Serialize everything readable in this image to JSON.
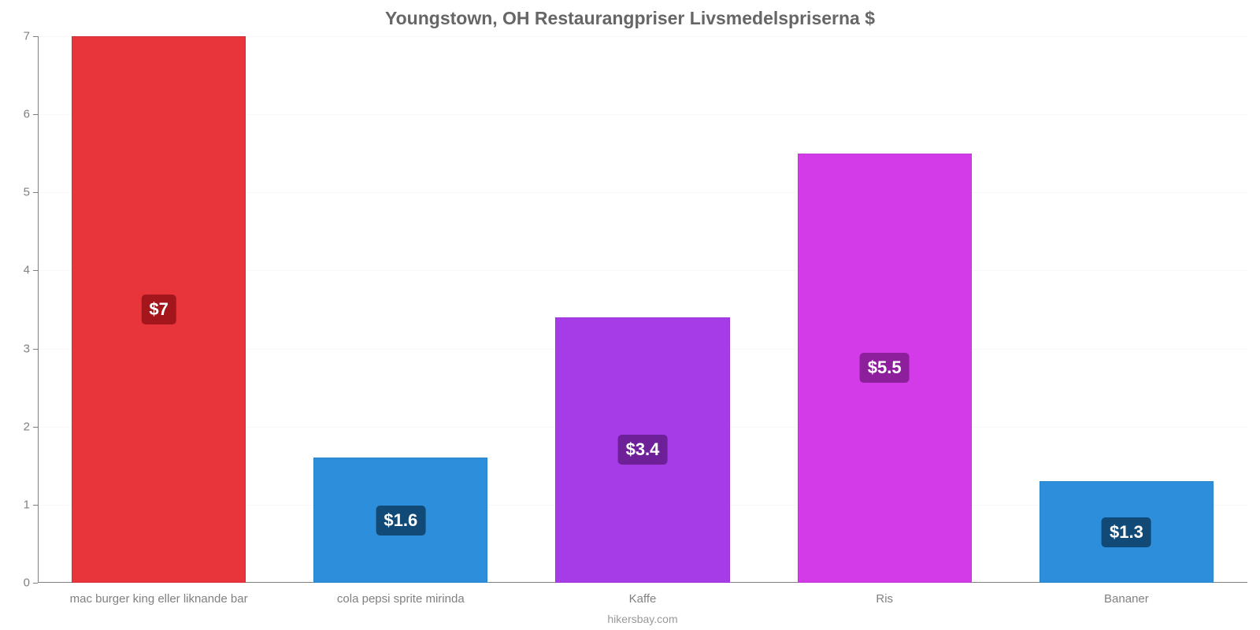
{
  "chart": {
    "type": "bar",
    "title": "Youngstown, OH Restaurangpriser Livsmedelspriserna $",
    "title_color": "#666666",
    "title_fontsize": 23,
    "background_color": "#ffffff",
    "grid_color": "#fcf6f6",
    "axis_color": "#808080",
    "label_color": "#808080",
    "label_fontsize": 15,
    "value_label_fontsize": 22,
    "ylim": [
      0,
      7
    ],
    "yticks": [
      0,
      1,
      2,
      3,
      4,
      5,
      6,
      7
    ],
    "bar_width": 0.72,
    "categories": [
      "mac burger king eller liknande bar",
      "cola pepsi sprite mirinda",
      "Kaffe",
      "Ris",
      "Bananer"
    ],
    "values": [
      7,
      1.6,
      3.4,
      5.5,
      1.3
    ],
    "value_labels": [
      "$7",
      "$1.6",
      "$3.4",
      "$5.5",
      "$1.3"
    ],
    "bar_colors": [
      "#e8343b",
      "#2d8fdb",
      "#a63be8",
      "#d33be8",
      "#2d8fdb"
    ],
    "badge_colors": [
      "#a3171c",
      "#114a77",
      "#6e2099",
      "#8e1f9c",
      "#114a77"
    ],
    "attribution": "hikersbay.com"
  }
}
